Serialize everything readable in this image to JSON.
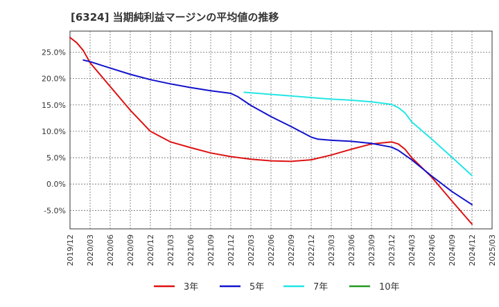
{
  "chart_data": {
    "type": "line",
    "title": "[6324]  当期純利益マージンの平均値の推移",
    "xlabel": "",
    "ylabel": "",
    "x_ticks": [
      "2019/12",
      "2020/03",
      "2020/06",
      "2020/09",
      "2020/12",
      "2021/03",
      "2021/06",
      "2021/09",
      "2021/12",
      "2022/03",
      "2022/06",
      "2022/09",
      "2022/12",
      "2023/03",
      "2023/06",
      "2023/09",
      "2023/12",
      "2024/03",
      "2024/06",
      "2024/09",
      "2024/12",
      "2025/03"
    ],
    "y_ticks": [
      -5,
      0,
      5,
      10,
      15,
      20,
      25
    ],
    "y_tick_labels": [
      "-5.0%",
      "0.0%",
      "5.0%",
      "10.0%",
      "15.0%",
      "20.0%",
      "25.0%"
    ],
    "ylim": [
      -8.5,
      29
    ],
    "grid": true,
    "legend_position": "bottom",
    "series": [
      {
        "name": "3年",
        "color": "#dd1111",
        "points": [
          [
            "2019/12",
            27.8
          ],
          [
            "2020/01",
            26.8
          ],
          [
            "2020/02",
            25.3
          ],
          [
            "2020/03",
            23.0
          ],
          [
            "2020/06",
            18.5
          ],
          [
            "2020/09",
            14.0
          ],
          [
            "2020/12",
            10.0
          ],
          [
            "2021/03",
            8.0
          ],
          [
            "2021/06",
            6.9
          ],
          [
            "2021/09",
            5.9
          ],
          [
            "2021/12",
            5.2
          ],
          [
            "2022/03",
            4.7
          ],
          [
            "2022/06",
            4.4
          ],
          [
            "2022/09",
            4.3
          ],
          [
            "2022/12",
            4.6
          ],
          [
            "2023/03",
            5.5
          ],
          [
            "2023/06",
            6.6
          ],
          [
            "2023/09",
            7.6
          ],
          [
            "2023/12",
            8.0
          ],
          [
            "2024/01",
            7.6
          ],
          [
            "2024/02",
            6.6
          ],
          [
            "2024/03",
            5.0
          ],
          [
            "2024/06",
            1.3
          ],
          [
            "2024/09",
            -3.2
          ],
          [
            "2024/12",
            -7.6
          ]
        ]
      },
      {
        "name": "5年",
        "color": "#1111cc",
        "points": [
          [
            "2020/02",
            23.5
          ],
          [
            "2020/03",
            23.2
          ],
          [
            "2020/06",
            22.0
          ],
          [
            "2020/09",
            20.8
          ],
          [
            "2020/12",
            19.8
          ],
          [
            "2021/03",
            19.0
          ],
          [
            "2021/06",
            18.3
          ],
          [
            "2021/09",
            17.7
          ],
          [
            "2021/12",
            17.2
          ],
          [
            "2022/01",
            16.6
          ],
          [
            "2022/03",
            14.9
          ],
          [
            "2022/06",
            12.8
          ],
          [
            "2022/09",
            10.9
          ],
          [
            "2022/12",
            8.9
          ],
          [
            "2023/01",
            8.5
          ],
          [
            "2023/03",
            8.3
          ],
          [
            "2023/06",
            8.1
          ],
          [
            "2023/09",
            7.7
          ],
          [
            "2023/12",
            7.0
          ],
          [
            "2024/01",
            6.4
          ],
          [
            "2024/03",
            4.6
          ],
          [
            "2024/06",
            1.5
          ],
          [
            "2024/09",
            -1.4
          ],
          [
            "2024/12",
            -3.9
          ]
        ]
      },
      {
        "name": "7年",
        "color": "#22e5e5",
        "points": [
          [
            "2022/02",
            17.4
          ],
          [
            "2022/06",
            17.0
          ],
          [
            "2022/09",
            16.7
          ],
          [
            "2022/12",
            16.4
          ],
          [
            "2023/03",
            16.1
          ],
          [
            "2023/06",
            15.9
          ],
          [
            "2023/09",
            15.6
          ],
          [
            "2023/12",
            15.1
          ],
          [
            "2024/01",
            14.5
          ],
          [
            "2024/02",
            13.5
          ],
          [
            "2024/03",
            11.8
          ],
          [
            "2024/06",
            8.5
          ],
          [
            "2024/09",
            5.1
          ],
          [
            "2024/12",
            1.6
          ]
        ]
      },
      {
        "name": "10年",
        "color": "#229922",
        "points": []
      }
    ]
  }
}
